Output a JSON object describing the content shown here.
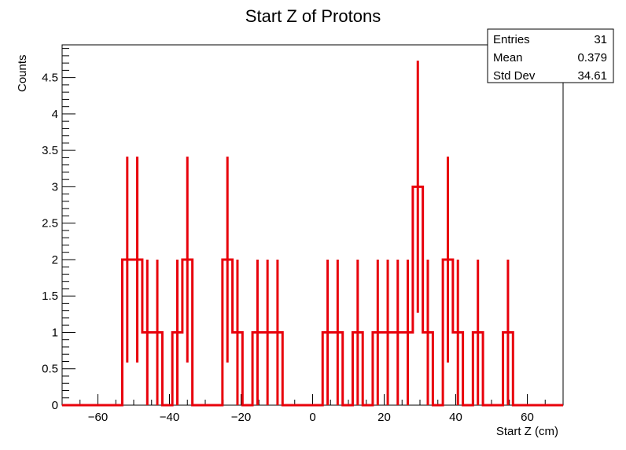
{
  "chart_data": {
    "type": "histogram",
    "title": "Start Z of Protons",
    "xlabel": "Start Z (cm)",
    "ylabel": "Counts",
    "xlim": [
      -70,
      70
    ],
    "ylim": [
      0,
      4.95
    ],
    "xticks": [
      -60,
      -40,
      -20,
      0,
      20,
      40,
      60
    ],
    "xtick_labels": [
      "−60",
      "−40",
      "−20",
      "0",
      "20",
      "40",
      "60"
    ],
    "yticks": [
      0,
      0.5,
      1,
      1.5,
      2,
      2.5,
      3,
      3.5,
      4,
      4.5
    ],
    "ytick_labels": [
      "0",
      "0.5",
      "1",
      "1.5",
      "2",
      "2.5",
      "3",
      "3.5",
      "4",
      "4.5"
    ],
    "bin_edges": [
      -70,
      -67.2,
      -64.4,
      -61.6,
      -58.8,
      -56,
      -53.2,
      -50.4,
      -47.6,
      -44.8,
      -42,
      -39.2,
      -36.4,
      -33.6,
      -30.8,
      -28,
      -25.2,
      -22.4,
      -19.6,
      -16.8,
      -14,
      -11.2,
      -8.4,
      -5.6,
      -2.8,
      0,
      2.8,
      5.6,
      8.4,
      11.2,
      14,
      16.8,
      19.6,
      22.4,
      25.2,
      28,
      30.8,
      33.6,
      36.4,
      39.2,
      42,
      44.8,
      47.6,
      50.4,
      53.2,
      56,
      58.8,
      61.6,
      64.4,
      67.2,
      70
    ],
    "counts": [
      0,
      0,
      0,
      0,
      0,
      0,
      2,
      2,
      1,
      1,
      0,
      1,
      2,
      0,
      0,
      0,
      2,
      1,
      0,
      1,
      1,
      1,
      0,
      0,
      0,
      0,
      1,
      1,
      0,
      1,
      0,
      1,
      1,
      1,
      1,
      3,
      1,
      0,
      2,
      1,
      0,
      1,
      0,
      0,
      1,
      0,
      0,
      0,
      0,
      0
    ],
    "errors": "sqrt(N)",
    "line_color": "#e8000b",
    "stats": {
      "rows": [
        {
          "label": "Entries",
          "value": "31"
        },
        {
          "label": "Mean",
          "value": "0.379"
        },
        {
          "label": "Std Dev",
          "value": "34.61"
        }
      ]
    }
  }
}
